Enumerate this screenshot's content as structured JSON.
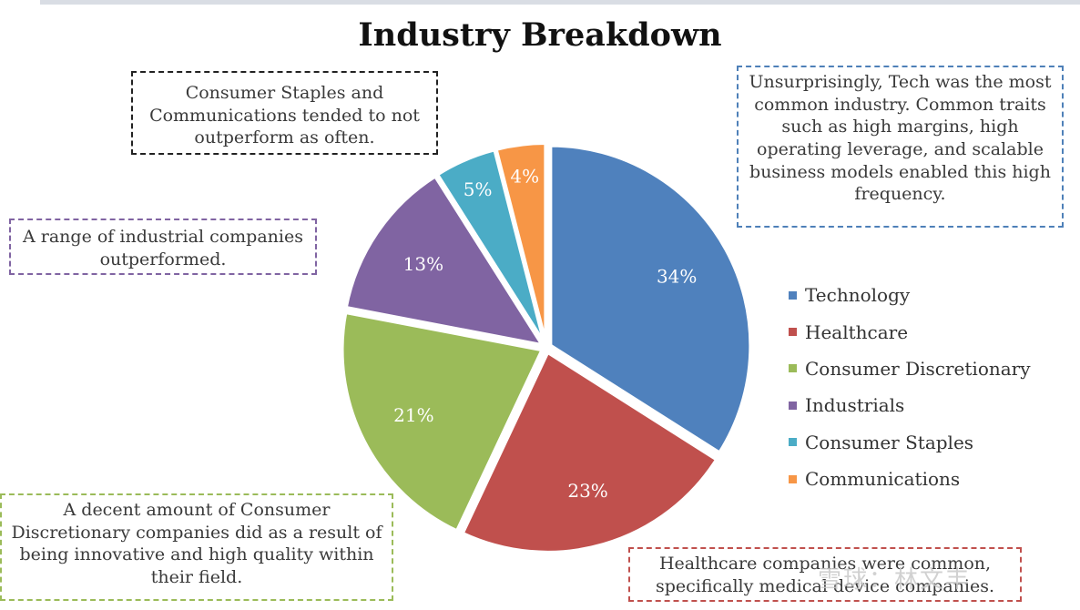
{
  "chart_data": {
    "type": "pie",
    "title": "Industry Breakdown",
    "categories": [
      "Technology",
      "Healthcare",
      "Consumer Discretionary",
      "Industrials",
      "Consumer Staples",
      "Communications"
    ],
    "values": [
      34,
      23,
      21,
      13,
      5,
      4
    ],
    "labels": [
      "34%",
      "23%",
      "21%",
      "13%",
      "5%",
      "4%"
    ],
    "colors": [
      "#4f81bd",
      "#c0504d",
      "#9bbb59",
      "#8064a2",
      "#4bacc6",
      "#f79646"
    ],
    "legend_position": "right"
  },
  "annotations": {
    "staples": "Consumer Staples and Communications tended to not outperform as often.",
    "tech": "Unsurprisingly, Tech was the most common industry. Common traits such as high margins, high operating leverage, and scalable business models enabled this  high frequency.",
    "industrials": "A range of industrial companies outperformed.",
    "discretionary": "A decent amount of Consumer Discretionary companies did as a result of being innovative and high quality within their field.",
    "healthcare": "Healthcare companies were common, specifically medical device companies."
  },
  "watermark": "雪球：林文丰"
}
